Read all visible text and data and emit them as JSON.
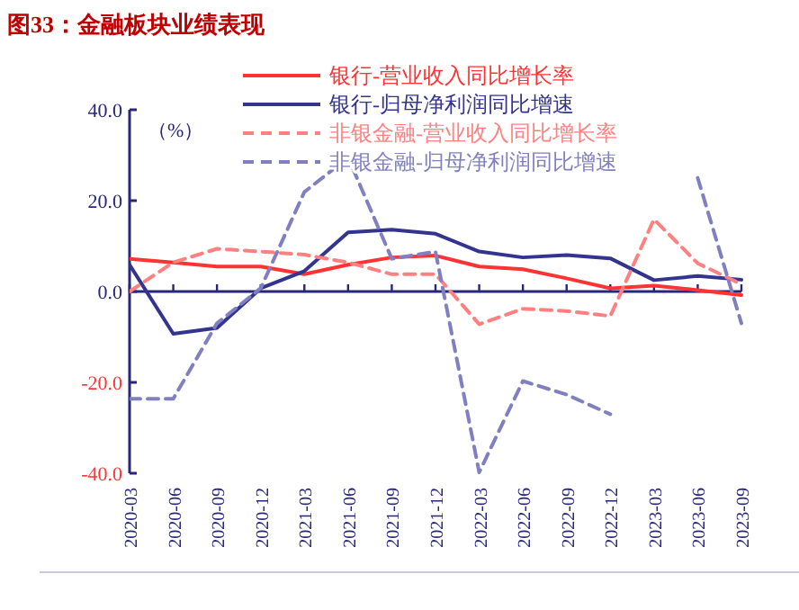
{
  "chart_data": {
    "type": "line",
    "title": "图33：金融板块业绩表现",
    "ylabel": "（%）",
    "categories": [
      "2020-03",
      "2020-06",
      "2020-09",
      "2020-12",
      "2021-03",
      "2021-06",
      "2021-09",
      "2021-12",
      "2022-03",
      "2022-06",
      "2022-09",
      "2022-12",
      "2023-03",
      "2023-06",
      "2023-09"
    ],
    "series": [
      {
        "name": "银行-营业收入同比增长率",
        "color": "#ff3333",
        "line_style": "solid",
        "values": [
          7.2,
          6.4,
          5.5,
          5.5,
          3.8,
          5.9,
          7.5,
          7.9,
          5.5,
          4.9,
          2.9,
          0.7,
          1.3,
          0.3,
          -0.8
        ]
      },
      {
        "name": "银行-归母净利润同比增速",
        "color": "#333390",
        "line_style": "solid",
        "values": [
          5.9,
          -9.3,
          -8.0,
          0.7,
          4.5,
          13.0,
          13.6,
          12.7,
          8.8,
          7.5,
          8.0,
          7.3,
          2.5,
          3.4,
          2.6
        ]
      },
      {
        "name": "非银金融-营业收入同比增长率",
        "color": "#ff8080",
        "line_style": "dashed",
        "values": [
          0,
          6.4,
          9.4,
          8.8,
          8.1,
          6.4,
          3.8,
          3.8,
          -7.2,
          -3.8,
          -4.3,
          -5.4,
          15.9,
          6.2,
          1.6
        ]
      },
      {
        "name": "非银金融-归母净利润同比增速",
        "color": "#8080c0",
        "line_style": "dashed",
        "values": [
          -23.6,
          -23.6,
          -7.0,
          0.7,
          21.9,
          29.5,
          7.2,
          8.8,
          -39.8,
          -19.7,
          -22.7,
          -27.0,
          null,
          25.0,
          -7.0
        ]
      }
    ],
    "ylim": [
      -40,
      40
    ],
    "yticks": [
      {
        "value": -40,
        "label": "-40.0"
      },
      {
        "value": -20,
        "label": "-20.0"
      },
      {
        "value": 0,
        "label": "0.0"
      },
      {
        "value": 20,
        "label": "20.0"
      },
      {
        "value": 40,
        "label": "40.0"
      }
    ],
    "ref_lines": [
      {
        "axis": "y",
        "value": 0,
        "color": "#26267a"
      }
    ],
    "grid": false,
    "legend": "top"
  }
}
